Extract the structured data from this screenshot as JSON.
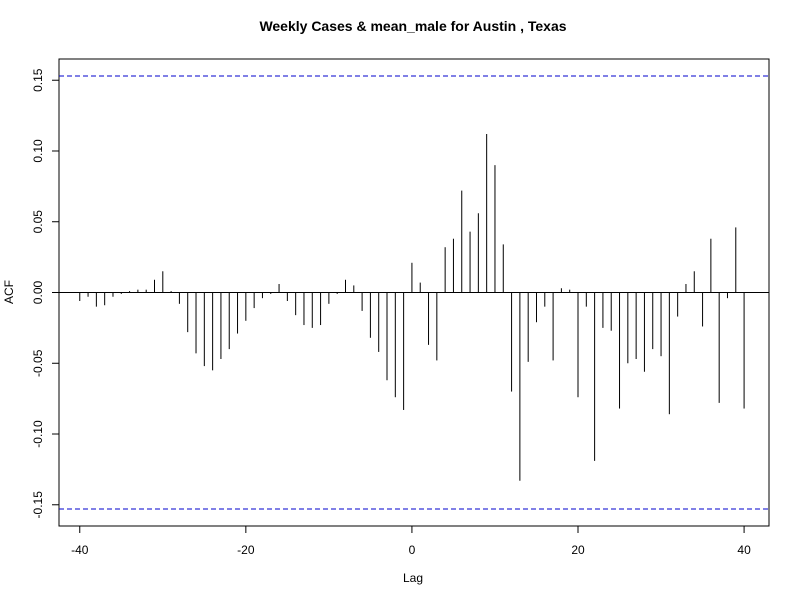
{
  "chart_data": {
    "type": "bar",
    "title": "Weekly Cases & mean_male for Austin , Texas",
    "xlabel": "Lag",
    "ylabel": "ACF",
    "xlim": [
      -42.5,
      43
    ],
    "ylim": [
      -0.165,
      0.165
    ],
    "x_ticks": [
      -40,
      -20,
      0,
      20,
      40
    ],
    "x_tick_labels": [
      "-40",
      "-20",
      "0",
      "20",
      "40"
    ],
    "y_ticks": [
      -0.15,
      -0.1,
      -0.05,
      0.0,
      0.05,
      0.1,
      0.15
    ],
    "y_tick_labels": [
      "-0.15",
      "-0.10",
      "-0.05",
      "0.00",
      "0.05",
      "0.10",
      "0.15"
    ],
    "confidence_bound": 0.153,
    "confidence_color": "#0000cc",
    "bar_color": "#000000",
    "grid": false,
    "lags": [
      -40,
      -39,
      -38,
      -37,
      -36,
      -35,
      -34,
      -33,
      -32,
      -31,
      -30,
      -29,
      -28,
      -27,
      -26,
      -25,
      -24,
      -23,
      -22,
      -21,
      -20,
      -19,
      -18,
      -17,
      -16,
      -15,
      -14,
      -13,
      -12,
      -11,
      -10,
      -9,
      -8,
      -7,
      -6,
      -5,
      -4,
      -3,
      -2,
      -1,
      0,
      1,
      2,
      3,
      4,
      5,
      6,
      7,
      8,
      9,
      10,
      11,
      12,
      13,
      14,
      15,
      16,
      17,
      18,
      19,
      20,
      21,
      22,
      23,
      24,
      25,
      26,
      27,
      28,
      29,
      30,
      31,
      32,
      33,
      34,
      35,
      36,
      37,
      38,
      39,
      40
    ],
    "values": [
      -0.006,
      -0.003,
      -0.01,
      -0.009,
      -0.003,
      -0.001,
      0.001,
      0.002,
      0.002,
      0.009,
      0.015,
      0.001,
      -0.008,
      -0.028,
      -0.043,
      -0.052,
      -0.055,
      -0.047,
      -0.04,
      -0.029,
      -0.02,
      -0.011,
      -0.004,
      -0.001,
      0.006,
      -0.006,
      -0.016,
      -0.023,
      -0.025,
      -0.023,
      -0.008,
      -0.001,
      0.009,
      0.005,
      -0.013,
      -0.032,
      -0.042,
      -0.062,
      -0.074,
      -0.083,
      0.021,
      0.007,
      -0.037,
      -0.048,
      0.032,
      0.038,
      0.072,
      0.043,
      0.056,
      0.112,
      0.09,
      0.034,
      -0.07,
      -0.133,
      -0.049,
      -0.021,
      -0.01,
      -0.048,
      0.003,
      0.002,
      -0.074,
      -0.01,
      -0.119,
      -0.025,
      -0.027,
      -0.082,
      -0.05,
      -0.047,
      -0.056,
      -0.04,
      -0.045,
      -0.086,
      -0.017,
      0.006,
      0.015,
      -0.024,
      0.038,
      -0.078,
      -0.004,
      0.046,
      -0.082
    ]
  }
}
